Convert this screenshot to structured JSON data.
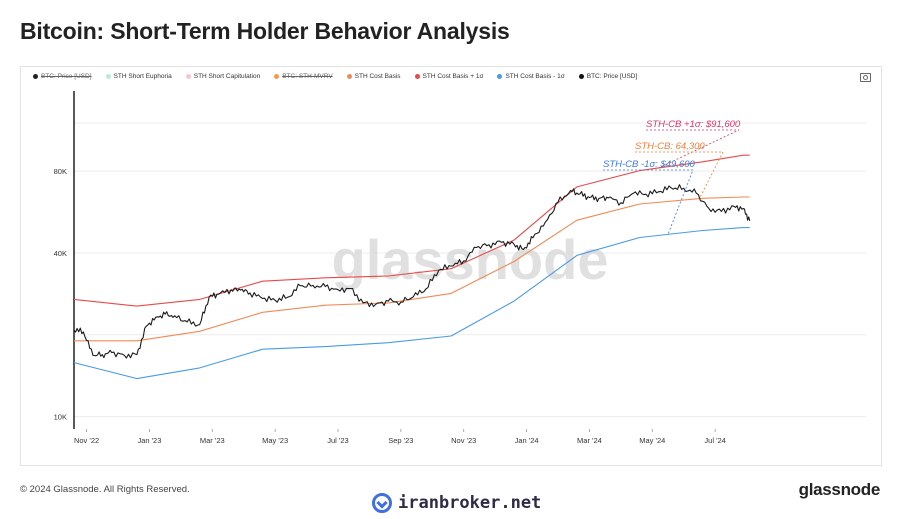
{
  "title": "Bitcoin: Short-Term Holder Behavior Analysis",
  "legend": [
    {
      "label": "BTC: Price [USD]",
      "color": "#222222",
      "struck": true
    },
    {
      "label": "STH Short Euphoria",
      "color": "#bfe8dc",
      "struck": false
    },
    {
      "label": "STH Short Capitulation",
      "color": "#f6c7cf",
      "struck": false
    },
    {
      "label": "BTC: STH-MVRV",
      "color": "#f59a4a",
      "struck": true
    },
    {
      "label": "STH Cost Basis",
      "color": "#f28a56",
      "struck": false
    },
    {
      "label": "STH Cost Basis + 1σ",
      "color": "#e84a4a",
      "struck": false
    },
    {
      "label": "STH Cost Basis - 1σ",
      "color": "#4a9be8",
      "struck": false
    },
    {
      "label": "BTC: Price [USD]",
      "color": "#111111",
      "struck": false
    }
  ],
  "watermark": "glassnode",
  "footer": {
    "copyright": "© 2024 Glassnode. All Rights Reserved.",
    "brand": "glassnode",
    "broker": "iranbroker.net"
  },
  "colors": {
    "price": "#1a1a1a",
    "cost_basis": "#f28a56",
    "plus_sigma": "#e84a4a",
    "minus_sigma": "#4a9be8",
    "plus_label": "#e0356a",
    "cb_label": "#f07f3a",
    "minus_label": "#3d7be0"
  },
  "chart_data": {
    "type": "line",
    "title": "Bitcoin: Short-Term Holder Behavior Analysis",
    "y_scale": "log",
    "ylim": [
      9000,
      150000
    ],
    "y_ticks": [
      {
        "value": 10000,
        "label": "10K"
      },
      {
        "value": 40000,
        "label": "40K"
      },
      {
        "value": 80000,
        "label": "80K"
      }
    ],
    "x_range": [
      0,
      25.2
    ],
    "x_ticks": [
      {
        "value": 0.4,
        "label": "Nov '22"
      },
      {
        "value": 2.4,
        "label": "Jan '23"
      },
      {
        "value": 4.4,
        "label": "Mar '23"
      },
      {
        "value": 6.4,
        "label": "May '23"
      },
      {
        "value": 8.4,
        "label": "Jul '23"
      },
      {
        "value": 10.4,
        "label": "Sep '23"
      },
      {
        "value": 12.4,
        "label": "Nov '23"
      },
      {
        "value": 14.4,
        "label": "Jan '24"
      },
      {
        "value": 16.4,
        "label": "Mar '24"
      },
      {
        "value": 18.4,
        "label": "May '24"
      },
      {
        "value": 20.4,
        "label": "Jul '24"
      }
    ],
    "series": [
      {
        "key": "price",
        "name": "BTC: Price [USD]",
        "x": [
          0,
          0.3,
          0.6,
          0.9,
          1.2,
          1.6,
          2.0,
          2.3,
          2.6,
          2.9,
          3.2,
          3.6,
          4.0,
          4.3,
          4.6,
          5.0,
          5.3,
          5.6,
          6.0,
          6.4,
          6.8,
          7.2,
          7.6,
          8.0,
          8.4,
          8.8,
          9.2,
          9.6,
          10.0,
          10.4,
          10.8,
          11.2,
          11.6,
          12.0,
          12.4,
          12.8,
          13.2,
          13.6,
          14.0,
          14.3,
          14.6,
          15.0,
          15.4,
          15.8,
          16.1,
          16.4,
          16.7,
          17.0,
          17.4,
          17.8,
          18.2,
          18.6,
          19.0,
          19.4,
          19.8,
          20.2,
          20.6,
          21.0,
          21.3,
          21.5
        ],
        "values": [
          20800,
          20500,
          16800,
          16900,
          17200,
          16800,
          16900,
          21500,
          23200,
          23800,
          23500,
          22300,
          21800,
          27500,
          28200,
          29300,
          29200,
          28500,
          27200,
          26800,
          27500,
          30300,
          30400,
          30100,
          29300,
          29600,
          26200,
          25900,
          26600,
          26400,
          27600,
          29500,
          34500,
          35800,
          37400,
          41900,
          42900,
          43800,
          43100,
          41200,
          45500,
          52000,
          61500,
          68000,
          66000,
          64000,
          63500,
          63800,
          61200,
          66400,
          65800,
          67200,
          69500,
          69200,
          66400,
          58300,
          56900,
          59400,
          58300,
          52500
        ]
      },
      {
        "key": "cost_basis",
        "name": "STH Cost Basis",
        "x": [
          0,
          2,
          4,
          6,
          8,
          10,
          12,
          14,
          16,
          18,
          20,
          21.3,
          21.5
        ],
        "values": [
          19000,
          19000,
          20600,
          24200,
          25700,
          26200,
          28400,
          37200,
          52800,
          60600,
          63600,
          64300,
          64300
        ]
      },
      {
        "key": "plus_sigma",
        "name": "STH Cost Basis + 1σ",
        "x": [
          0,
          2,
          4,
          6,
          8,
          10,
          12,
          14,
          16,
          18,
          20,
          21.3,
          21.5
        ],
        "values": [
          27000,
          25500,
          27000,
          31500,
          32400,
          32900,
          35000,
          44600,
          70000,
          80400,
          86600,
          91600,
          91600
        ]
      },
      {
        "key": "minus_sigma",
        "name": "STH Cost Basis - 1σ",
        "x": [
          0,
          2,
          4,
          6,
          8,
          10,
          12,
          14,
          16,
          18,
          20,
          21.3,
          21.5
        ],
        "values": [
          15800,
          13800,
          15100,
          17700,
          18100,
          18700,
          19800,
          26600,
          39200,
          45600,
          48400,
          49600,
          49600
        ]
      }
    ],
    "annotations": [
      {
        "text": "STH-CB +1σ: $91,600",
        "series": "plus_sigma"
      },
      {
        "text": "STH-CB: 64,300",
        "series": "cost_basis"
      },
      {
        "text": "STH-CB -1σ: $49,600",
        "series": "minus_sigma"
      }
    ]
  }
}
